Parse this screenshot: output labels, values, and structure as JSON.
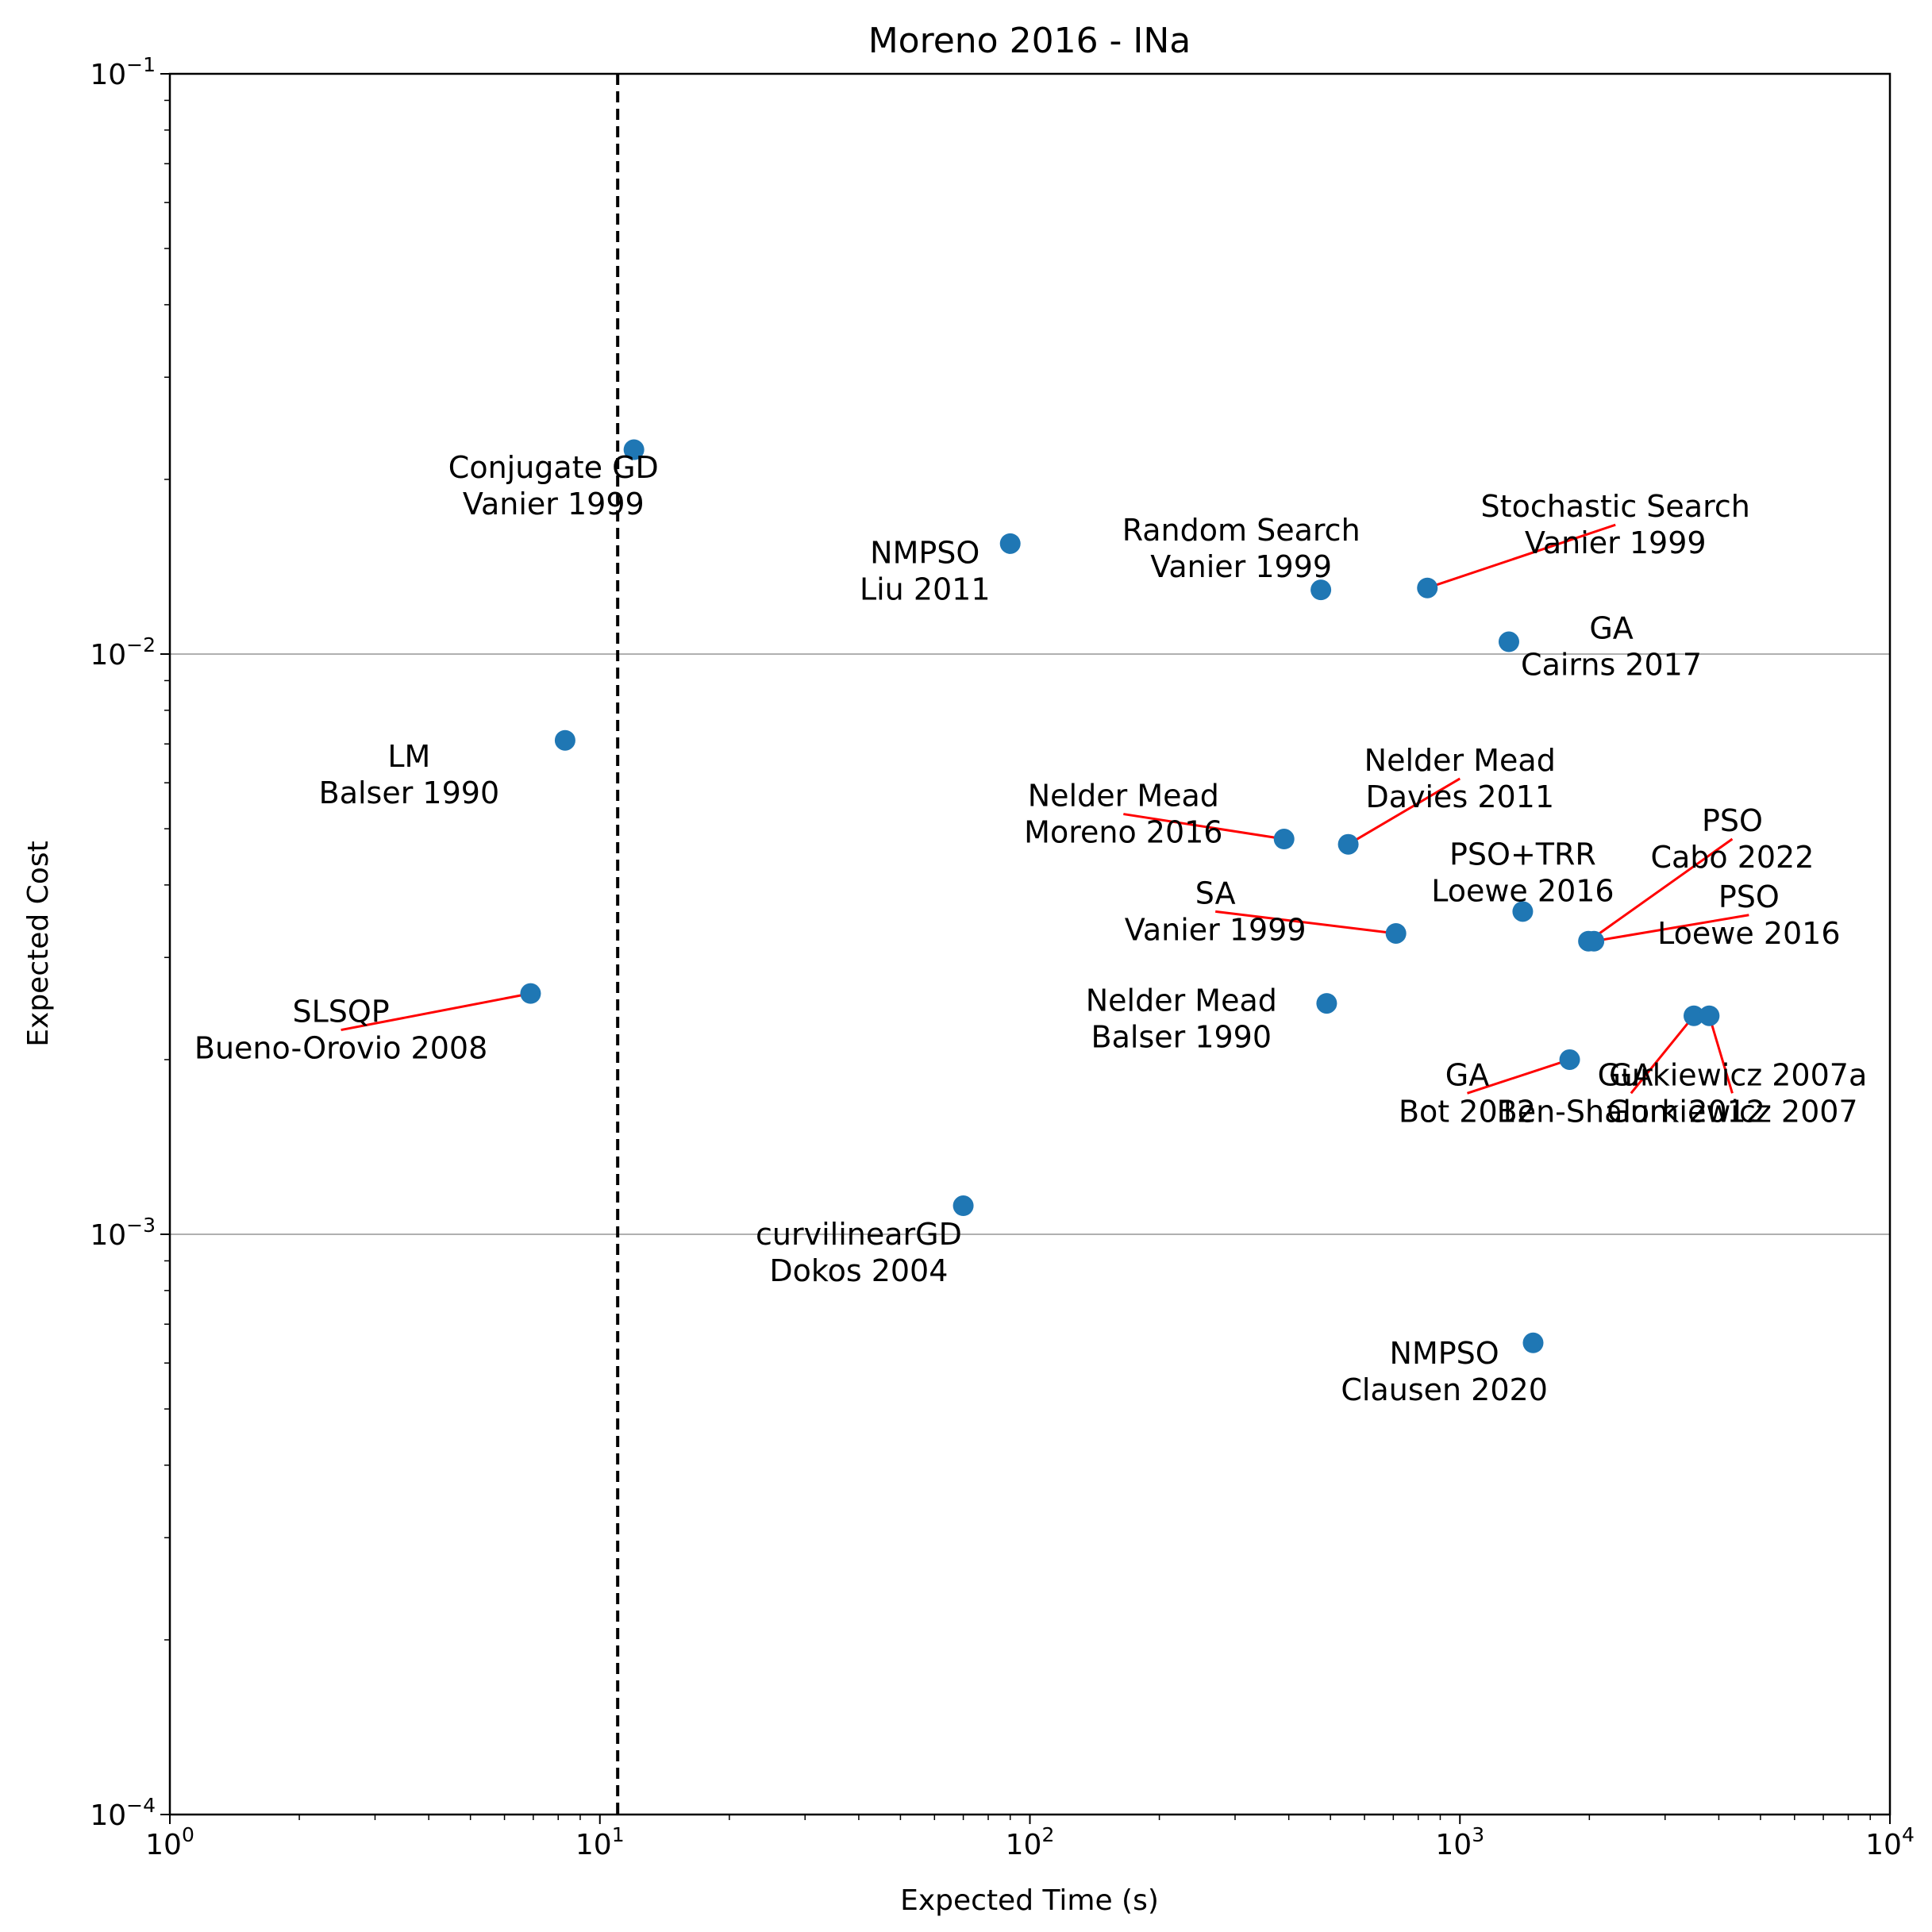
{
  "chart_data": {
    "type": "scatter",
    "title": "Moreno 2016 - INa",
    "xlabel": "Expected Time (s)",
    "ylabel": "Expected Cost",
    "xscale": "log",
    "yscale": "log",
    "xlim": [
      1,
      10000
    ],
    "ylim": [
      0.0001,
      0.1
    ],
    "x_ticks": [
      {
        "base": "10",
        "exp": "0",
        "value": 1
      },
      {
        "base": "10",
        "exp": "1",
        "value": 10
      },
      {
        "base": "10",
        "exp": "2",
        "value": 100
      },
      {
        "base": "10",
        "exp": "3",
        "value": 1000
      },
      {
        "base": "10",
        "exp": "4",
        "value": 10000
      }
    ],
    "y_ticks": [
      {
        "base": "10",
        "exp": "−4",
        "value": 0.0001
      },
      {
        "base": "10",
        "exp": "−3",
        "value": 0.001
      },
      {
        "base": "10",
        "exp": "−2",
        "value": 0.01
      },
      {
        "base": "10",
        "exp": "−1",
        "value": 0.1
      }
    ],
    "grid": "horizontal major lines at 10^-3 and 10^-2",
    "reference_line": {
      "axis": "x",
      "value": 11,
      "style": "dashed",
      "color": "#000000"
    },
    "marker_color": "#1f77b4",
    "connector_color": "#ff0000",
    "points": [
      {
        "x": 12,
        "y": 0.0225,
        "label": [
          "Conjugate GD",
          "Vanier 1999"
        ],
        "lx": 7.8,
        "ly": 0.0195,
        "connector": false
      },
      {
        "x": 8.3,
        "y": 0.0071,
        "label": [
          "LM",
          "Balser 1990"
        ],
        "lx": 3.6,
        "ly": 0.0062,
        "connector": false
      },
      {
        "x": 6.9,
        "y": 0.0026,
        "label": [
          "SLSQP",
          "Bueno-Orovio 2008"
        ],
        "lx": 2.5,
        "ly": 0.00225,
        "connector": true
      },
      {
        "x": 90,
        "y": 0.0155,
        "label": [
          "NMPSO",
          "Liu 2011"
        ],
        "lx": 57,
        "ly": 0.0139,
        "connector": false
      },
      {
        "x": 70,
        "y": 0.00112,
        "label": [
          "curvilinearGD",
          "Dokos 2004"
        ],
        "lx": 40,
        "ly": 0.00093,
        "connector": false
      },
      {
        "x": 475,
        "y": 0.0129,
        "label": [
          "Random Search",
          "Vanier 1999"
        ],
        "lx": 310,
        "ly": 0.0152,
        "connector": false
      },
      {
        "x": 840,
        "y": 0.013,
        "label": [
          "Stochastic Search",
          "Vanier 1999"
        ],
        "lx": 2300,
        "ly": 0.0167,
        "connector": true
      },
      {
        "x": 1300,
        "y": 0.0105,
        "label": [
          "GA",
          "Cairns 2017"
        ],
        "lx": 2250,
        "ly": 0.0103,
        "connector": false
      },
      {
        "x": 550,
        "y": 0.0047,
        "label": [
          "Nelder Mead",
          "Davies 2011"
        ],
        "lx": 1000,
        "ly": 0.0061,
        "connector": true
      },
      {
        "x": 390,
        "y": 0.0048,
        "label": [
          "Nelder Mead",
          "Moreno 2016"
        ],
        "lx": 165,
        "ly": 0.0053,
        "connector": true
      },
      {
        "x": 710,
        "y": 0.0033,
        "label": [
          "SA",
          "Vanier 1999"
        ],
        "lx": 270,
        "ly": 0.0036,
        "connector": true
      },
      {
        "x": 490,
        "y": 0.0025,
        "label": [
          "Nelder Mead",
          "Balser 1990"
        ],
        "lx": 225,
        "ly": 0.00235,
        "connector": false
      },
      {
        "x": 1400,
        "y": 0.0036,
        "label": [
          "PSO+TRR",
          "Loewe 2016"
        ],
        "lx": 1400,
        "ly": 0.0042,
        "connector": false
      },
      {
        "x": 2050,
        "y": 0.0032,
        "label": [
          "PSO",
          "Loewe 2016"
        ],
        "lx": 4700,
        "ly": 0.00355,
        "connector": true
      },
      {
        "x": 1990,
        "y": 0.0032,
        "label": [
          "PSO",
          "Cabo 2022"
        ],
        "lx": 4300,
        "ly": 0.0048,
        "connector": true
      },
      {
        "x": 1800,
        "y": 0.002,
        "label": [
          "GA",
          "Bot 2012"
        ],
        "lx": 1040,
        "ly": 0.00175,
        "connector": true
      },
      {
        "x": 3500,
        "y": 0.00238,
        "label": [
          "GA",
          "Ben-Shalom 2012"
        ],
        "lx": 2500,
        "ly": 0.00175,
        "connector": true
      },
      {
        "x": 3800,
        "y": 0.00238,
        "label": [
          "Gurkiewicz 2007a",
          "Gurkiewicz 2007"
        ],
        "lx": 4300,
        "ly": 0.00175,
        "connector": true
      },
      {
        "x": 1480,
        "y": 0.00065,
        "label": [
          "NMPSO",
          "Clausen 2020"
        ],
        "lx": 920,
        "ly": 0.00058,
        "connector": false
      }
    ]
  }
}
